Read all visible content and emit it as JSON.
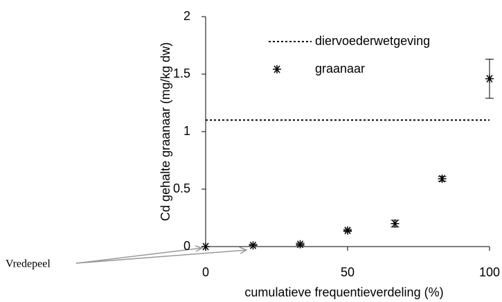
{
  "chart_data": {
    "type": "scatter",
    "x_label": "cumulatieve frequentieverdeling (%)",
    "y_label": "Cd gehalte graanaar (mg/kg dw)",
    "xlim": [
      0,
      100
    ],
    "xticks": [
      0,
      50,
      100
    ],
    "ylim": [
      0,
      2
    ],
    "yticks": [
      0,
      0.5,
      1,
      1.5,
      2
    ],
    "hline": {
      "name": "diervoederwetgeving",
      "value": 1.1,
      "color": "#000000"
    },
    "series": [
      {
        "name": "graanaar",
        "color": "#000000",
        "x": [
          0,
          16.7,
          33.3,
          50,
          66.7,
          83.3,
          100
        ],
        "values": [
          0,
          0.01,
          0.02,
          0.14,
          0.2,
          0.59,
          1.46
        ],
        "errors": [
          0,
          0.01,
          0.01,
          0.01,
          0.03,
          0.02,
          0.17
        ]
      }
    ],
    "annotation": "Vredepeel"
  }
}
